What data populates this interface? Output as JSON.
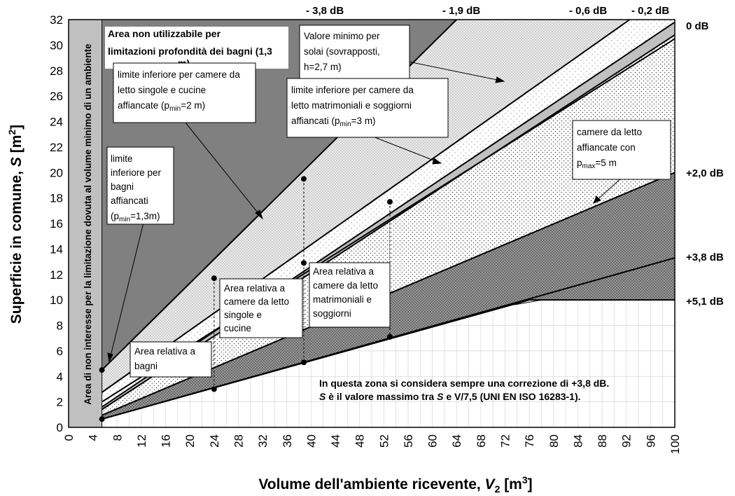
{
  "chart_data": {
    "type": "area",
    "xlabel_main": "Volume dell'ambiente ricevente, ",
    "xlabel_var": "V",
    "xlabel_sub": "2",
    "xlabel_unit": " [m",
    "xlabel_sup": "3",
    "xlabel_close": "]",
    "ylabel_main": "Superficie in comune, ",
    "ylabel_var": "S",
    "ylabel_unit": " [m",
    "ylabel_sup": "2",
    "ylabel_close": "]",
    "xlim": [
      0,
      100
    ],
    "ylim": [
      0,
      32
    ],
    "x_ticks": [
      "0",
      "4",
      "8",
      "12",
      "16",
      "20",
      "24",
      "28",
      "32",
      "36",
      "40",
      "44",
      "48",
      "52",
      "56",
      "60",
      "64",
      "68",
      "72",
      "76",
      "80",
      "84",
      "88",
      "92",
      "96",
      "100"
    ],
    "y_ticks": [
      "0",
      "2",
      "4",
      "6",
      "8",
      "10",
      "12",
      "14",
      "16",
      "18",
      "20",
      "22",
      "24",
      "26",
      "28",
      "30",
      "32"
    ],
    "grid": true,
    "excluded_band": {
      "x_range": [
        0,
        5.5
      ],
      "label": "Area di non interesse per la limitazione dovuta al volume minimo di un ambiente"
    },
    "correction_lines": [
      {
        "label": "- 3,8 dB",
        "points": [
          [
            5.5,
            4.5
          ],
          [
            64,
            32
          ]
        ]
      },
      {
        "label": "- 1,9 dB",
        "points": [
          [
            5.5,
            2.75
          ],
          [
            100,
            34.5
          ]
        ]
      },
      {
        "label": "- 0,6 dB",
        "points": [
          [
            5.5,
            2.0
          ],
          [
            100,
            30.5
          ]
        ]
      },
      {
        "label": "- 0,2 dB",
        "points": [
          [
            5.5,
            1.6
          ],
          [
            100,
            31.8
          ]
        ]
      },
      {
        "label": "0 dB",
        "points": [
          [
            5.5,
            1.4
          ],
          [
            100,
            30.8
          ]
        ]
      },
      {
        "label": "+2,0 dB",
        "points": [
          [
            5.5,
            0.95
          ],
          [
            100,
            20
          ]
        ]
      },
      {
        "label": "+3,8 dB",
        "points": [
          [
            5.5,
            0.65
          ],
          [
            100,
            13.3
          ]
        ]
      },
      {
        "label": "+5,1 dB",
        "points": [
          [
            5.5,
            0.65
          ],
          [
            76,
            10
          ],
          [
            100,
            10
          ]
        ]
      }
    ],
    "markers": [
      [
        5.5,
        4.5
      ],
      [
        5.5,
        0.65
      ],
      [
        24,
        11.7
      ],
      [
        24,
        3.0
      ],
      [
        38.8,
        19.5
      ],
      [
        38.8,
        12.9
      ],
      [
        38.8,
        5.1
      ],
      [
        53,
        17.7
      ],
      [
        53,
        7.1
      ]
    ],
    "annotations": {
      "non_usable": [
        "Area non utilizzabile per",
        "limitazioni profondità dei bagni (1,3",
        "m)"
      ],
      "single_bed": {
        "line1": "limite inferiore per camere da",
        "line2": "letto singole e cucine",
        "line3_pre": "affiancate (p",
        "line3_sub": "min",
        "line3_post": "=2 m)"
      },
      "bath_lower": {
        "line1": "limite",
        "line2": "inferiore per",
        "line3": "bagni",
        "line4": "affiancati",
        "line5_pre": "(p",
        "line5_sub": "min",
        "line5_post": "=1,3m)"
      },
      "min_floor": [
        "Valore minimo per",
        "solai (sovrapposti,",
        "h=2,7 m)"
      ],
      "double_bed": {
        "line1": "limite inferiore per camere da",
        "line2": "letto matrimoniali e soggiorni",
        "line3_pre": "affiancati (p",
        "line3_sub": "min",
        "line3_post": "=3 m)"
      },
      "bed_max": {
        "line1": "camere da letto",
        "line2": "affiancate  con",
        "line3_pre": "p",
        "line3_sub": "max",
        "line3_post": "=5 m"
      },
      "area_single": [
        "Area relativa a",
        "camere da letto",
        "singole e",
        "cucine"
      ],
      "area_double": [
        "Area relativa a",
        "camere da letto",
        "matrimoniali e",
        "soggiorni"
      ],
      "area_bath": [
        "Area relativa a",
        "bagni"
      ],
      "note": {
        "line1": "In questa zona si considera sempre una correzione di +3,8 dB.",
        "line2_s1": "S",
        "line2_mid": " è il valore massimo tra ",
        "line2_s2": "S",
        "line2_post": " e V/7,5 (UNI EN ISO 16283-1)."
      }
    },
    "colors": {
      "dark_gray": "#808080",
      "light_gray": "#c0c0c0",
      "excluded_band": "#c0c0c0",
      "white": "#ffffff",
      "line": "#000000"
    }
  }
}
